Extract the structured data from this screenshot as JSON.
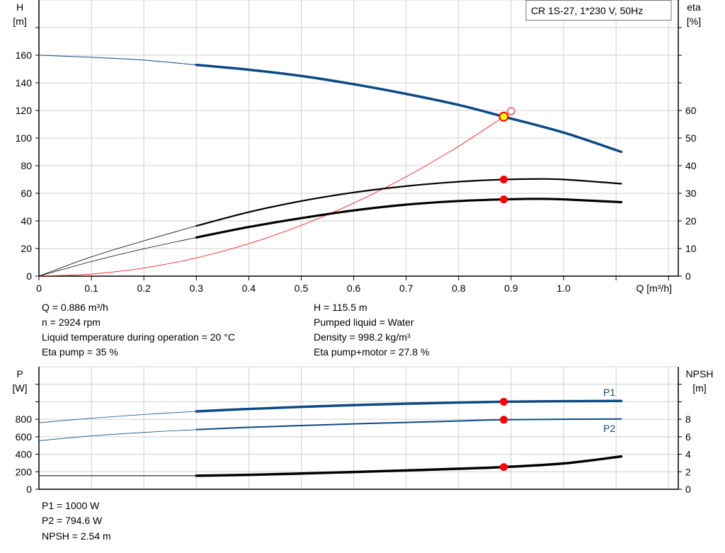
{
  "colors": {
    "head": "#0b4a86",
    "eta": "#000000",
    "system": "#ff0000",
    "duty_point": "#ff0000",
    "duty_point_fill": "#ffff00",
    "power": "#0b4a86",
    "npsh": "#000000",
    "grid": "#d0d0d0"
  },
  "legend": {
    "title": "CR 1S-27, 1*230 V, 50Hz"
  },
  "info_left": [
    "Q = 0.886 m³/h",
    "n = 2924 rpm",
    "Liquid temperature during operation = 20 °C",
    "Eta pump = 35 %"
  ],
  "info_right": [
    "H = 115.5 m",
    "Pumped liquid = Water",
    "Density = 998.2 kg/m³",
    "Eta pump+motor = 27.8 %"
  ],
  "info_bottom": [
    "P1 = 1000 W",
    "P2 = 794.6 W",
    "NPSH = 2.54 m"
  ],
  "chart_data": [
    {
      "type": "line",
      "xlabel": "Q [m³/h]",
      "ylabel": "H\n[m]",
      "y2label": "eta\n[%]",
      "xlim": [
        0,
        1.2
      ],
      "ylim": [
        0,
        200
      ],
      "y2lim": [
        0,
        100
      ],
      "grid": true,
      "legend_placement": "top-right",
      "x_ticks": [
        "0",
        "0.1",
        "0.2",
        "0.3",
        "0.4",
        "0.5",
        "0.6",
        "0.7",
        "0.8",
        "0.9",
        "1.0"
      ],
      "y_ticks": [
        "0",
        "20",
        "40",
        "60",
        "80",
        "100",
        "120",
        "140",
        "160"
      ],
      "y2_ticks": [
        "0",
        "10",
        "20",
        "30",
        "40",
        "50",
        "60"
      ],
      "series": [
        {
          "id": "head",
          "axis": "left",
          "x": [
            0,
            0.1,
            0.2,
            0.3,
            0.4,
            0.5,
            0.6,
            0.7,
            0.8,
            0.886,
            1.0,
            1.11
          ],
          "y": [
            160,
            158.5,
            156.5,
            153,
            149.5,
            145,
            139,
            132,
            124,
            115.5,
            104,
            90
          ]
        },
        {
          "id": "eta-pump",
          "axis": "right",
          "x": [
            0,
            0.1,
            0.2,
            0.3,
            0.4,
            0.5,
            0.6,
            0.7,
            0.8,
            0.886,
            0.95,
            1.0,
            1.11
          ],
          "y": [
            0,
            7,
            12.8,
            18.2,
            23.2,
            27.2,
            30.3,
            32.6,
            34.2,
            35,
            35.2,
            35,
            33.5
          ]
        },
        {
          "id": "eta-pump-motor",
          "axis": "right",
          "x": [
            0,
            0.1,
            0.2,
            0.3,
            0.4,
            0.5,
            0.6,
            0.7,
            0.8,
            0.886,
            0.95,
            1.0,
            1.11
          ],
          "y": [
            0,
            5.3,
            9.9,
            14,
            17.8,
            21,
            23.8,
            25.9,
            27.2,
            27.8,
            28,
            27.8,
            26.8
          ]
        },
        {
          "id": "system-curve",
          "axis": "left",
          "x": [
            0,
            0.1,
            0.2,
            0.3,
            0.4,
            0.5,
            0.6,
            0.7,
            0.8,
            0.886
          ],
          "y": [
            0,
            1.5,
            5.9,
            13.2,
            23.5,
            36.8,
            52.9,
            72,
            94.1,
            115.5
          ]
        }
      ],
      "duty_points": [
        {
          "id": "head",
          "x": 0.886,
          "y": 115.5,
          "axis": "left"
        },
        {
          "id": "eta-pump",
          "x": 0.886,
          "y": 35,
          "axis": "right"
        },
        {
          "id": "eta-pump-motor",
          "x": 0.886,
          "y": 27.8,
          "axis": "right"
        }
      ],
      "requested_point": {
        "x": 0.9,
        "y": 119.5
      }
    },
    {
      "type": "line",
      "ylabel": "P\n[W]",
      "y2label": "NPSH\n[m]",
      "xlim": [
        0,
        1.2
      ],
      "ylim": [
        0,
        1400
      ],
      "y2lim": [
        0,
        14
      ],
      "grid": true,
      "y_ticks": [
        "0",
        "200",
        "400",
        "600",
        "800"
      ],
      "y2_ticks": [
        "0",
        "2",
        "4",
        "6",
        "8"
      ],
      "series": [
        {
          "id": "P1",
          "name": "P1",
          "axis": "left",
          "x": [
            0,
            0.1,
            0.2,
            0.3,
            0.4,
            0.5,
            0.6,
            0.7,
            0.8,
            0.886,
            1.0,
            1.11
          ],
          "y": [
            760,
            812,
            855,
            890,
            918,
            942,
            962,
            978,
            991,
            1000,
            1006,
            1010
          ]
        },
        {
          "id": "P2",
          "name": "P2",
          "axis": "left",
          "x": [
            0,
            0.1,
            0.2,
            0.3,
            0.4,
            0.5,
            0.6,
            0.7,
            0.8,
            0.886,
            1.0,
            1.11
          ],
          "y": [
            555,
            610,
            650,
            682,
            708,
            728,
            748,
            764,
            781,
            794.6,
            800,
            803
          ]
        },
        {
          "id": "NPSH",
          "axis": "right",
          "x": [
            0,
            0.1,
            0.2,
            0.3,
            0.4,
            0.5,
            0.6,
            0.7,
            0.8,
            0.886,
            1.0,
            1.11
          ],
          "y": [
            1.55,
            1.55,
            1.55,
            1.55,
            1.65,
            1.8,
            1.97,
            2.15,
            2.35,
            2.54,
            2.95,
            3.75
          ]
        }
      ],
      "duty_points": [
        {
          "id": "P1",
          "x": 0.886,
          "y": 1000,
          "axis": "left"
        },
        {
          "id": "P2",
          "x": 0.886,
          "y": 794.6,
          "axis": "left"
        },
        {
          "id": "NPSH",
          "x": 0.886,
          "y": 2.54,
          "axis": "right"
        }
      ]
    }
  ]
}
